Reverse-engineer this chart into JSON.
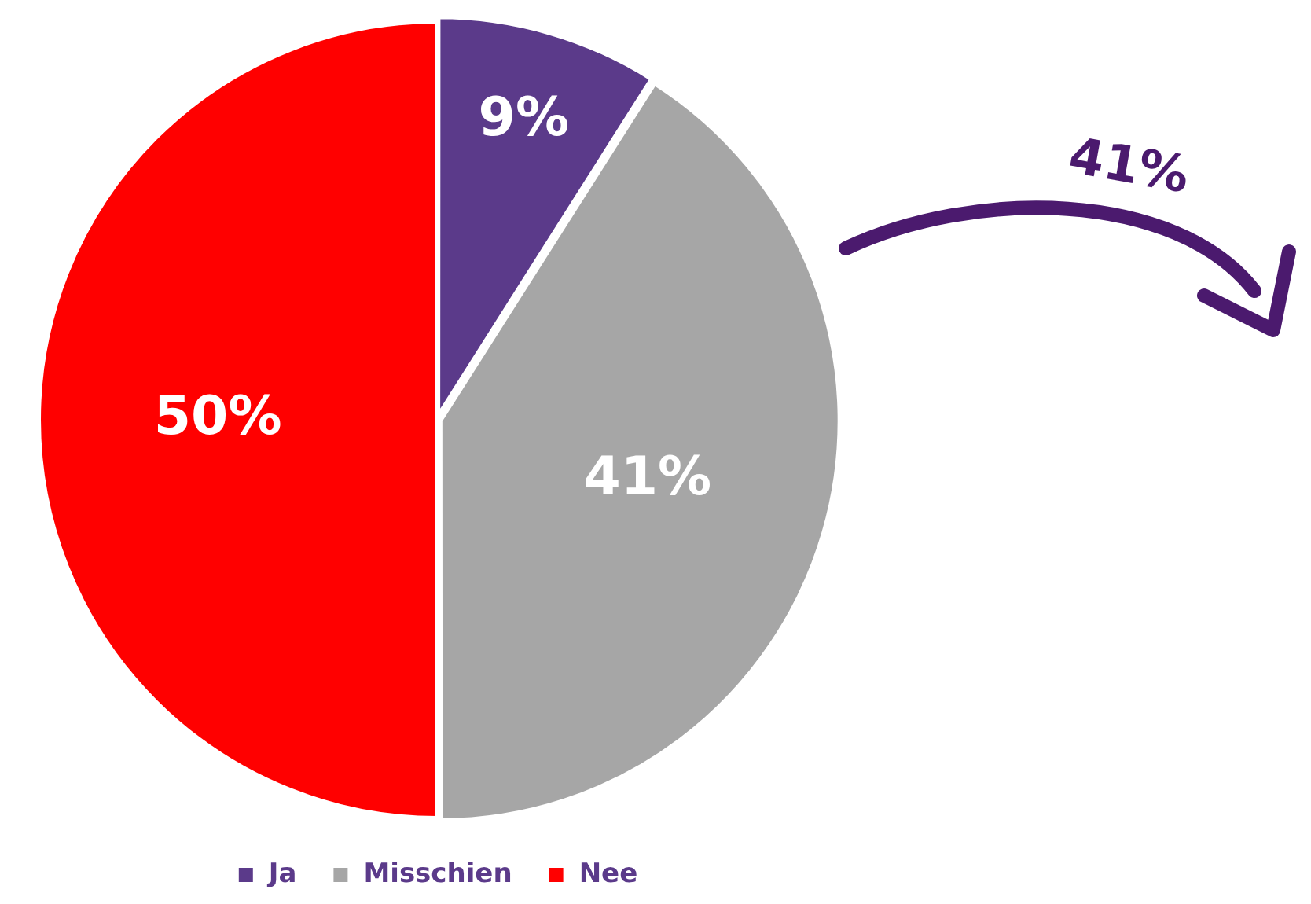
{
  "chart_data": {
    "type": "pie",
    "categories": [
      "Ja",
      "Misschien",
      "Nee"
    ],
    "values": [
      9,
      41,
      50
    ],
    "colors": [
      "#5b3a8a",
      "#a6a6a6",
      "#ff0000"
    ],
    "value_labels": [
      "9%",
      "41%",
      "50%"
    ],
    "legend": "bottom",
    "annotations": [
      "41%"
    ]
  }
}
